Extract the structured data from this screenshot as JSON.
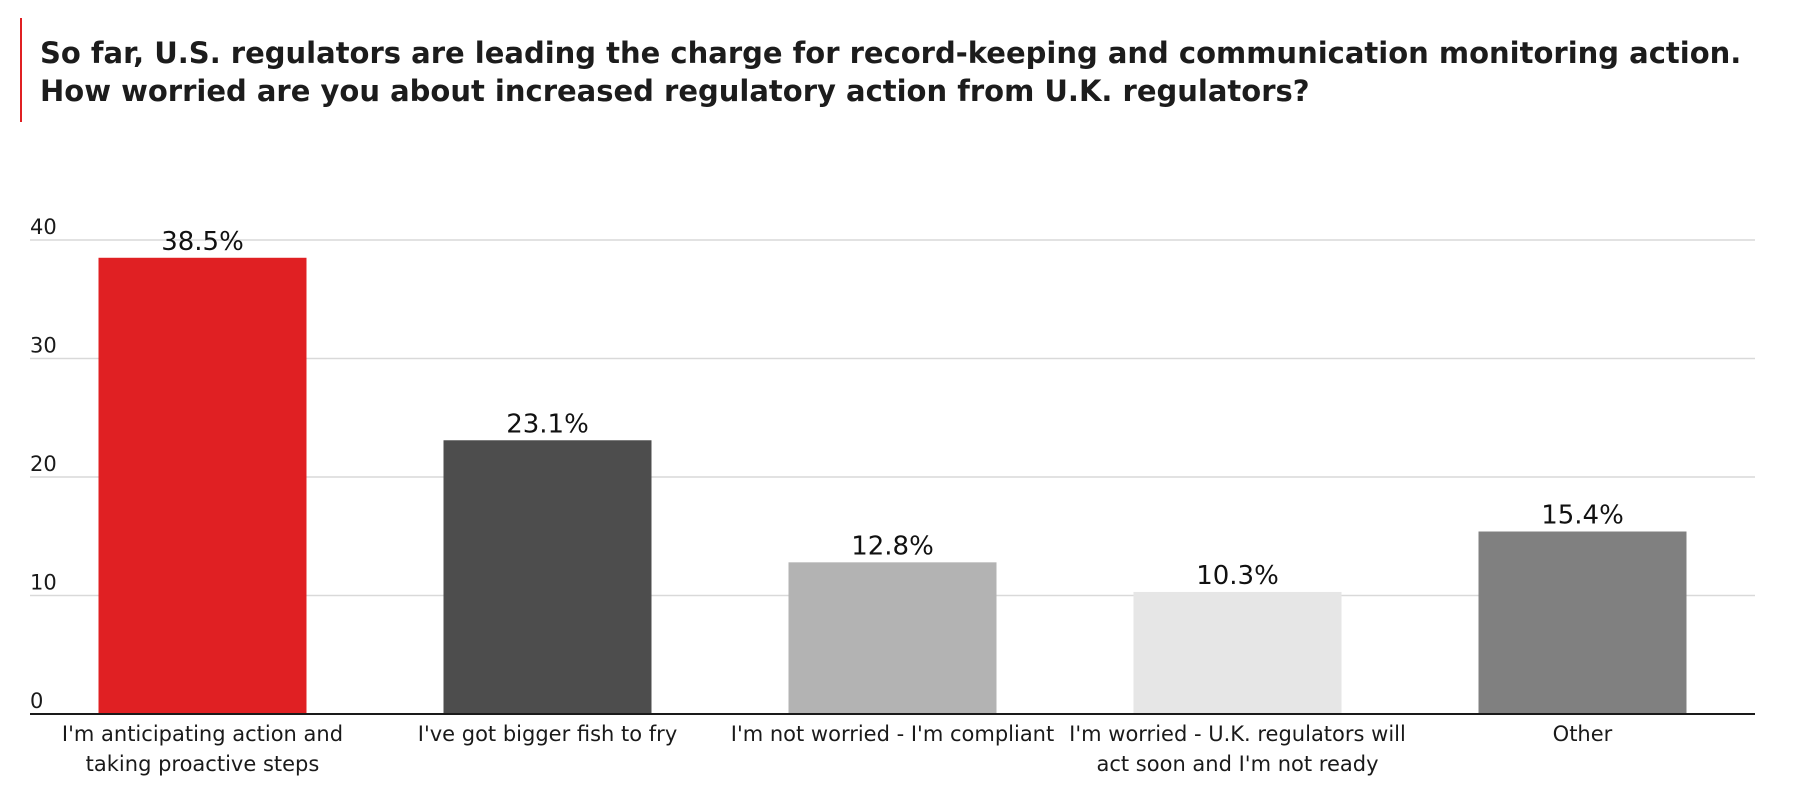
{
  "title": {
    "line1": "So far, U.S. regulators are leading the charge for record-keeping and communication monitoring action.",
    "line2": "How worried are you about increased regulatory action from U.K. regulators?"
  },
  "colors": {
    "accent": "#e02023",
    "bars": [
      "#e02023",
      "#4d4d4d",
      "#b3b3b3",
      "#e6e6e6",
      "#808080"
    ],
    "grid": "#d9d9d9",
    "baseline": "#1a1a1a"
  },
  "chart_data": {
    "type": "bar",
    "title": "So far, U.S. regulators are leading the charge for record-keeping and communication monitoring action. How worried are you about increased regulatory action from U.K. regulators?",
    "categories": [
      [
        "I'm anticipating action and",
        "taking proactive steps"
      ],
      [
        "I've got bigger fish to fry"
      ],
      [
        "I'm not worried - I'm compliant"
      ],
      [
        "I'm worried - U.K. regulators will",
        "act soon and I'm not ready"
      ],
      [
        "Other"
      ]
    ],
    "values": [
      38.5,
      23.1,
      12.8,
      10.3,
      15.4
    ],
    "value_labels": [
      "38.5%",
      "23.1%",
      "12.8%",
      "10.3%",
      "15.4%"
    ],
    "ylim": [
      0,
      40
    ],
    "yticks": [
      0,
      10,
      20,
      30,
      40
    ],
    "ytick_labels": [
      "0",
      "10",
      "20",
      "30",
      "40"
    ],
    "xlabel": "",
    "ylabel": "",
    "grid": true,
    "legend": "none"
  }
}
